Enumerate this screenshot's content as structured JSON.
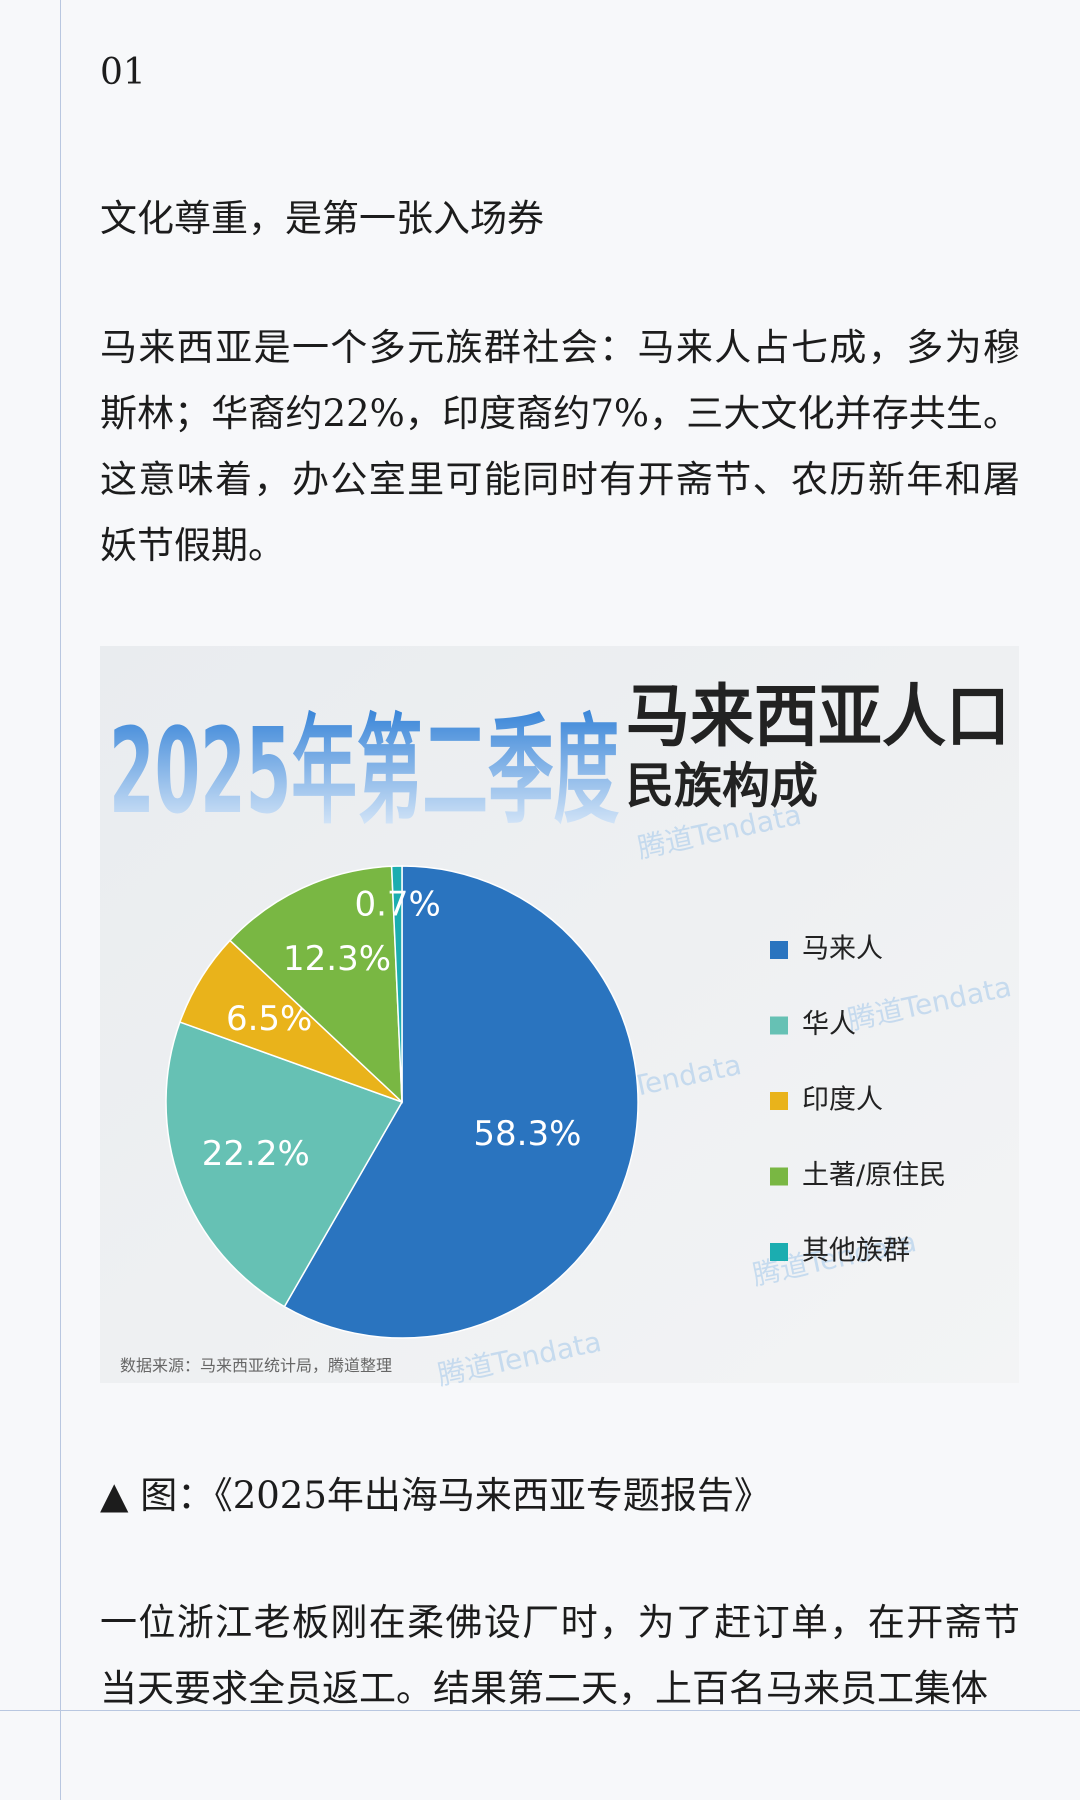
{
  "page_number": "01",
  "heading": "文化尊重，是第一张入场券",
  "paragraph_1": "马来西亚是一个多元族群社会：马来人占七成，多为穆斯林；华裔约22%，印度裔约7%，三大文化并存共生。这意味着，办公室里可能同时有开斋节、农历新年和屠妖节假期。",
  "chart_data": {
    "type": "pie",
    "title": [
      "2025年第二季度",
      "马来西亚人口",
      "民族构成"
    ],
    "categories": [
      "马来人",
      "华人",
      "印度人",
      "土著/原住民",
      "其他族群"
    ],
    "values": [
      58.3,
      22.2,
      6.5,
      12.3,
      0.7
    ],
    "value_labels": [
      "58.3%",
      "22.2%",
      "6.5%",
      "12.3%",
      "0.7%"
    ],
    "colors": [
      "#2a74bf",
      "#66c1b4",
      "#e9b31b",
      "#79b743",
      "#1badb0"
    ],
    "source": "数据来源：马来西亚统计局，腾道整理",
    "watermark": "腾道Tendata"
  },
  "caption": "▲ 图：《2025年出海马来西亚专题报告》",
  "paragraph_2": "一位浙江老板刚在柔佛设厂时，为了赶订单，在开斋节当天要求全员返工。结果第二天，上百名马来员工集体"
}
